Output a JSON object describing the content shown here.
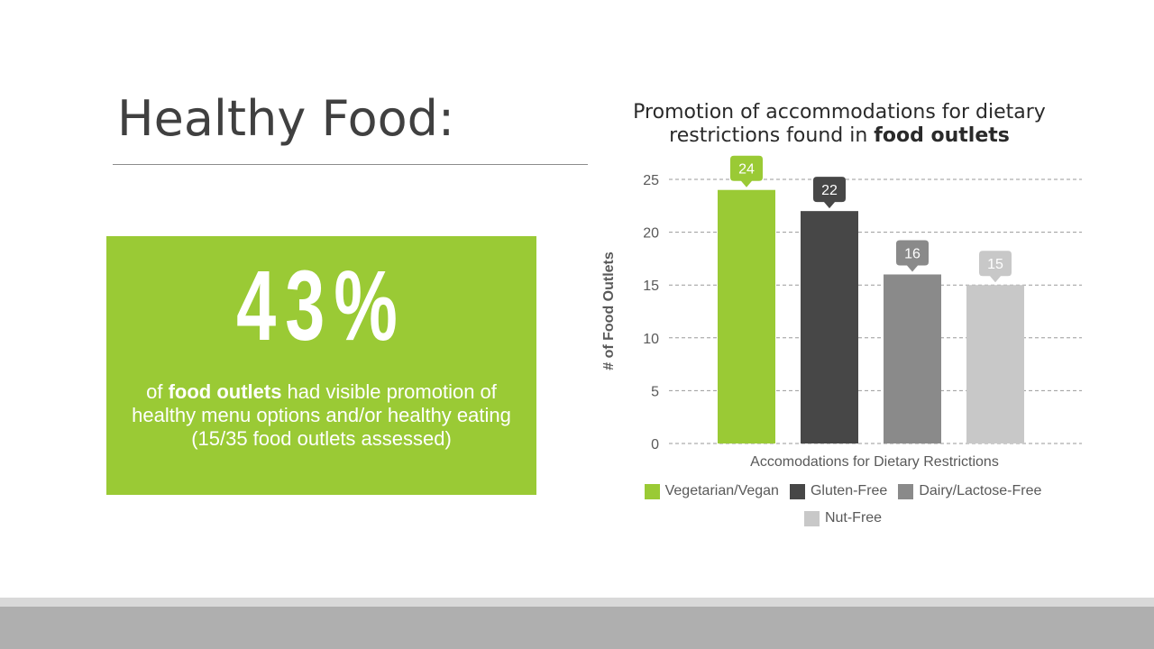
{
  "slide": {
    "title": "Healthy Food:"
  },
  "stat": {
    "value": "43%",
    "caption_bold": "food outlets",
    "caption_prefix": "of ",
    "caption_suffix": " had visible promotion of healthy menu options and/or healthy eating (15/35 food outlets assessed)"
  },
  "chart_data": {
    "type": "bar",
    "title_plain": "Promotion of accommodations for dietary restrictions found in ",
    "title_bold": "food outlets",
    "xlabel": "Accomodations for Dietary Restrictions",
    "ylabel": "# of Food Outlets",
    "ylim": [
      0,
      25
    ],
    "yticks": [
      0,
      5,
      10,
      15,
      20,
      25
    ],
    "grid": true,
    "legend_position": "bottom",
    "categories": [
      "Vegetarian/Vegan",
      "Gluten-Free",
      "Dairy/Lactose-Free",
      "Nut-Free"
    ],
    "values": [
      24,
      22,
      16,
      15
    ],
    "colors": [
      "#9aca35",
      "#474747",
      "#8a8a8a",
      "#c8c8c8"
    ],
    "data_labels": [
      "24",
      "22",
      "16",
      "15"
    ]
  },
  "colors": {
    "accent_green": "#9aca35",
    "title_text": "#404040",
    "footer": "#afafaf"
  }
}
